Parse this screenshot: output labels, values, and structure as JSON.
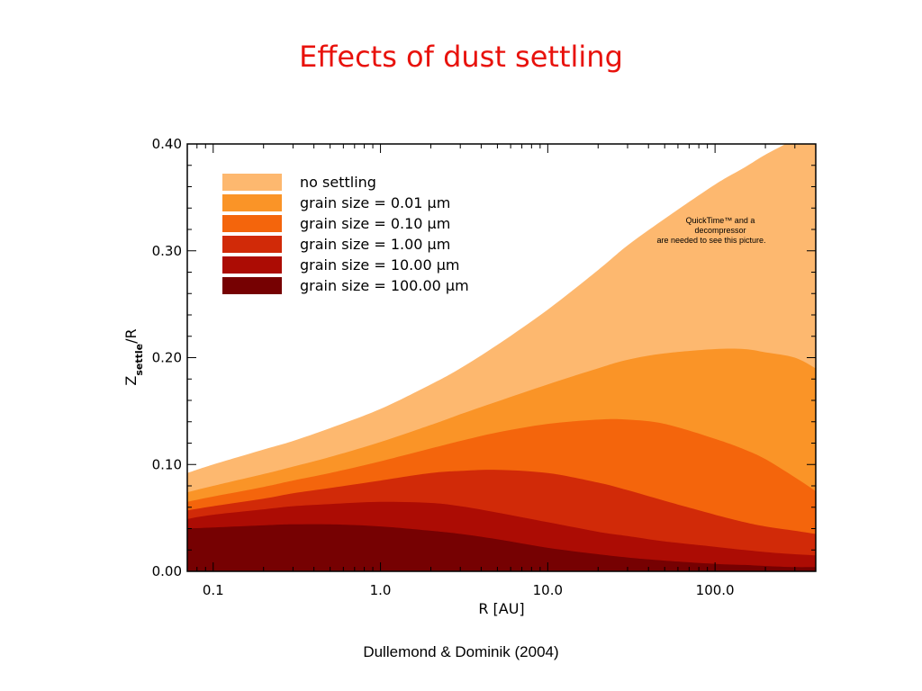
{
  "slide": {
    "title": "Effects of dust settling",
    "citation": "Dullemond & Dominik (2004)",
    "placeholder_lines": [
      "QuickTime™ and a",
      "decompressor",
      "are needed to see this picture."
    ]
  },
  "chart_data": {
    "type": "area",
    "xlabel": "R [AU]",
    "ylabel": "Z_settle/R",
    "xscale": "log",
    "xlim": [
      0.07,
      400
    ],
    "ylim": [
      0.0,
      0.4
    ],
    "xticks": [
      0.1,
      1.0,
      10.0,
      100.0
    ],
    "xtick_labels": [
      "0.1",
      "1.0",
      "10.0",
      "100.0"
    ],
    "yticks": [
      0.0,
      0.1,
      0.2,
      0.3,
      0.4
    ],
    "ytick_labels": [
      "0.00",
      "0.10",
      "0.20",
      "0.30",
      "0.40"
    ],
    "grid": false,
    "legend_position": "top-left",
    "x": [
      0.07,
      0.1,
      0.2,
      0.3,
      0.5,
      1.0,
      2.0,
      3.0,
      5.0,
      10.0,
      20.0,
      30.0,
      50.0,
      100.0,
      150.0,
      200.0,
      300.0,
      400.0
    ],
    "series": [
      {
        "name": "no settling",
        "color": "#fdb86f",
        "values": [
          0.092,
          0.1,
          0.114,
          0.122,
          0.134,
          0.152,
          0.175,
          0.19,
          0.212,
          0.245,
          0.282,
          0.305,
          0.33,
          0.362,
          0.378,
          0.39,
          0.405,
          0.42
        ]
      },
      {
        "name": "grain size = 0.01 μm",
        "color": "#fa9427",
        "values": [
          0.074,
          0.08,
          0.091,
          0.098,
          0.107,
          0.121,
          0.137,
          0.147,
          0.159,
          0.175,
          0.19,
          0.198,
          0.204,
          0.208,
          0.208,
          0.205,
          0.2,
          0.19
        ]
      },
      {
        "name": "grain size = 0.10 μm",
        "color": "#f4650c",
        "values": [
          0.065,
          0.07,
          0.079,
          0.085,
          0.092,
          0.103,
          0.115,
          0.122,
          0.13,
          0.138,
          0.142,
          0.142,
          0.138,
          0.124,
          0.114,
          0.105,
          0.088,
          0.075
        ]
      },
      {
        "name": "grain size = 1.00 μm",
        "color": "#d12a08",
        "values": [
          0.057,
          0.061,
          0.068,
          0.073,
          0.078,
          0.085,
          0.092,
          0.094,
          0.095,
          0.092,
          0.083,
          0.076,
          0.066,
          0.053,
          0.046,
          0.042,
          0.038,
          0.035
        ]
      },
      {
        "name": "grain size = 10.00 μm",
        "color": "#ac0c04",
        "values": [
          0.049,
          0.053,
          0.058,
          0.061,
          0.063,
          0.065,
          0.064,
          0.061,
          0.055,
          0.046,
          0.037,
          0.033,
          0.028,
          0.023,
          0.02,
          0.018,
          0.016,
          0.015
        ]
      },
      {
        "name": "grain size = 100.00 μm",
        "color": "#760102",
        "values": [
          0.04,
          0.041,
          0.043,
          0.044,
          0.044,
          0.042,
          0.038,
          0.035,
          0.03,
          0.022,
          0.016,
          0.013,
          0.01,
          0.007,
          0.006,
          0.005,
          0.004,
          0.004
        ]
      }
    ]
  }
}
